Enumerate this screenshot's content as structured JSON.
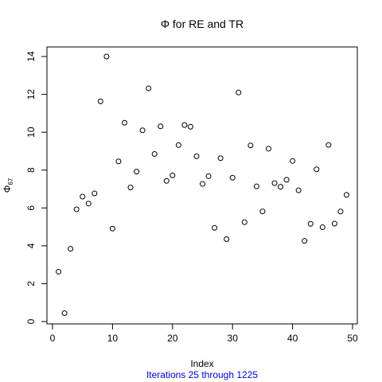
{
  "chart_data": {
    "type": "scatter",
    "title": "Φ for RE and TR",
    "xlabel": "Index",
    "ylabel": {
      "symbol": "Φ",
      "subscript": "67"
    },
    "subtitle": "Iterations 25 through 1225",
    "subtitle_color": "#0000cc",
    "point_color": "#000000",
    "xlim": [
      0,
      50
    ],
    "ylim": [
      0,
      14
    ],
    "x_ticks": [
      "0",
      "10",
      "20",
      "30",
      "40",
      "50"
    ],
    "y_ticks": [
      "0",
      "2",
      "4",
      "6",
      "8",
      "10",
      "12",
      "14"
    ],
    "grid": false,
    "marker": "open-circle",
    "x": [
      1,
      2,
      3,
      4,
      5,
      6,
      7,
      8,
      9,
      10,
      11,
      12,
      13,
      14,
      15,
      16,
      17,
      18,
      19,
      20,
      21,
      22,
      23,
      24,
      25,
      26,
      27,
      28,
      29,
      30,
      31,
      32,
      33,
      34,
      35,
      36,
      37,
      38,
      39,
      40,
      41,
      42,
      43,
      44,
      45,
      46,
      47,
      48,
      49
    ],
    "y": [
      2.63,
      0.44,
      3.84,
      5.93,
      6.6,
      6.23,
      6.77,
      11.63,
      14.0,
      4.91,
      8.46,
      10.5,
      7.08,
      7.92,
      10.1,
      12.32,
      8.85,
      10.31,
      7.43,
      7.72,
      9.32,
      10.38,
      10.29,
      8.73,
      7.27,
      7.68,
      4.95,
      8.63,
      4.35,
      7.6,
      12.1,
      5.25,
      9.3,
      7.14,
      5.82,
      9.13,
      7.31,
      7.12,
      7.49,
      8.48,
      6.93,
      4.26,
      5.16,
      8.04,
      4.98,
      9.33,
      5.17,
      5.81,
      6.69
    ]
  }
}
